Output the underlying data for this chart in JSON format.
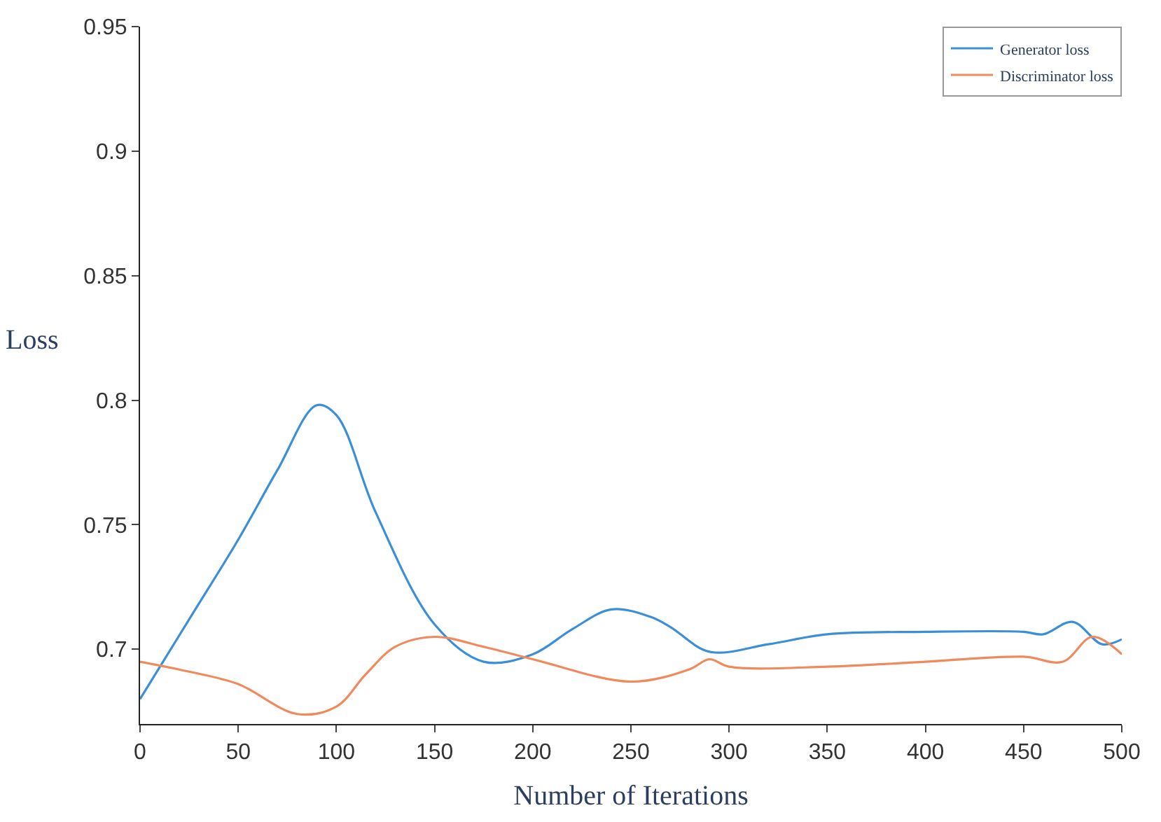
{
  "chart_data": {
    "type": "line",
    "xlabel": "Number of Iterations",
    "ylabel": "Loss",
    "xlim": [
      0,
      500
    ],
    "xticks": [
      0,
      50,
      100,
      150,
      200,
      250,
      300,
      350,
      400,
      450,
      500
    ],
    "ylim": [
      0.67,
      0.95
    ],
    "yticks": [
      0.7,
      0.75,
      0.8,
      0.85,
      0.9,
      0.95
    ],
    "legend": "top right",
    "marker": "none",
    "line_style": "solid",
    "series": [
      {
        "name": "Generator loss",
        "color": "#3b8fd9",
        "x": [
          0,
          25,
          50,
          70,
          90,
          100,
          120,
          150,
          175,
          200,
          220,
          240,
          260,
          270,
          290,
          320,
          350,
          400,
          450,
          460,
          475,
          490,
          500
        ],
        "values": [
          0.68,
          0.712,
          0.744,
          0.772,
          0.798,
          0.794,
          0.755,
          0.71,
          0.695,
          0.698,
          0.708,
          0.716,
          0.713,
          0.709,
          0.699,
          0.702,
          0.706,
          0.707,
          0.707,
          0.706,
          0.711,
          0.702,
          0.704
        ]
      },
      {
        "name": "Discriminator loss",
        "color": "#f08a5d",
        "x": [
          0,
          25,
          50,
          80,
          100,
          115,
          130,
          150,
          175,
          200,
          250,
          280,
          290,
          300,
          350,
          400,
          450,
          470,
          485,
          500
        ],
        "values": [
          0.695,
          0.691,
          0.686,
          0.674,
          0.677,
          0.69,
          0.701,
          0.705,
          0.701,
          0.696,
          0.687,
          0.692,
          0.696,
          0.693,
          0.693,
          0.695,
          0.697,
          0.695,
          0.705,
          0.698
        ]
      }
    ]
  }
}
